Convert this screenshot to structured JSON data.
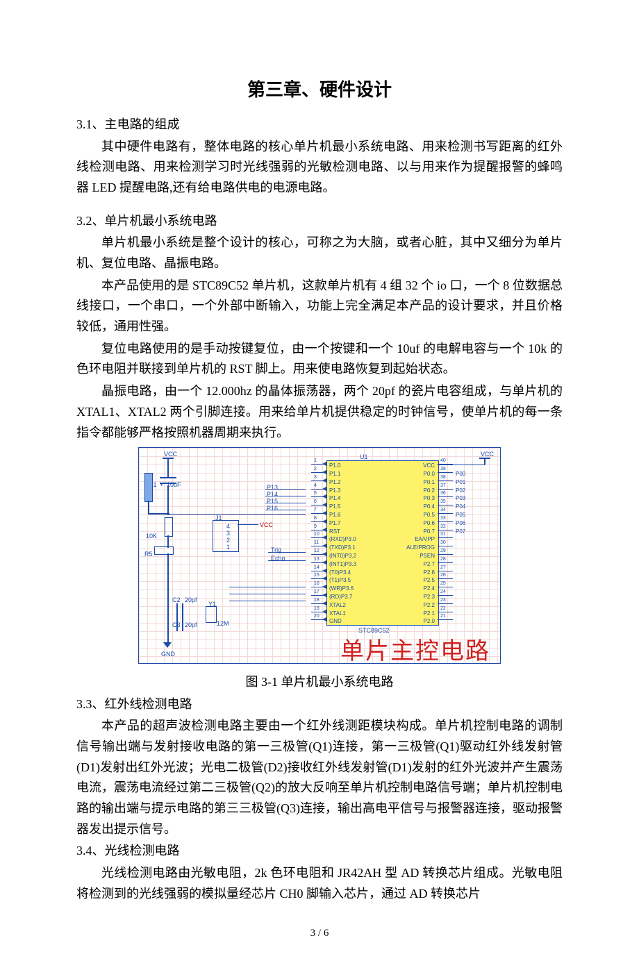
{
  "chapter_title": "第三章、硬件设计",
  "s31": {
    "heading": "3.1、主电路的组成",
    "p1": "其中硬件电路有，整体电路的核心单片机最小系统电路、用来检测书写距离的红外线检测电路、用来检测学习时光线强弱的光敏检测电路、以与用来作为提醒报警的蜂鸣器 LED 提醒电路,还有给电路供电的电源电路。"
  },
  "s32": {
    "heading": "3.2、单片机最小系统电路",
    "p1": "单片机最小系统是整个设计的核心，可称之为大脑，或者心脏，其中又细分为单片机、复位电路、晶振电路。",
    "p2": "本产品使用的是 STC89C52 单片机，这款单片机有 4 组 32 个 io 口，一个 8 位数据总线接口，一个串口，一个外部中断输入，功能上完全满足本产品的设计要求，并且价格较低，通用性强。",
    "p3": "复位电路使用的是手动按键复位，由一个按键和一个 10uf 的电解电容与一个 10k 的色环电阻并联接到单片机的 RST 脚上。用来使电路恢复到起始状态。",
    "p4": "晶振电路，由一个 12.000hz 的晶体振荡器，两个 20pf 的瓷片电容组成，与单片机的 XTAL1、XTAL2 两个引脚连接。用来给单片机提供稳定的时钟信号，使单片机的每一条指令都能够严格按照机器周期来执行。"
  },
  "fig31": {
    "caption": "图 3-1 单片机最小系统电路",
    "title_red": "单片主控电路",
    "chip_name": "STC89C52",
    "chip_ref": "U1",
    "vcc": "VCC",
    "gnd": "GND",
    "c1": "C1",
    "c1_val": "10uF",
    "c1_plus": "+",
    "c2": "C2",
    "c2_val": "20pf",
    "c3": "C3",
    "c3_val": "20pf",
    "y1": "Y1",
    "y1_val": "12M",
    "r5": "R5",
    "r5_val": "10K",
    "j1": "J1",
    "j1_pins": [
      "4",
      "3",
      "2",
      "1"
    ],
    "j1_vcc": "VCC",
    "trig": "Trig",
    "echo": "Echo",
    "bus_p": [
      "P13",
      "P14",
      "P15",
      "P16"
    ],
    "left_pins": [
      {
        "n": "1",
        "name": "P1.0"
      },
      {
        "n": "2",
        "name": "P1.1"
      },
      {
        "n": "3",
        "name": "P1.2"
      },
      {
        "n": "4",
        "name": "P1.3"
      },
      {
        "n": "5",
        "name": "P1.4"
      },
      {
        "n": "6",
        "name": "P1.5"
      },
      {
        "n": "7",
        "name": "P1.6"
      },
      {
        "n": "8",
        "name": "P1.7"
      },
      {
        "n": "9",
        "name": "RST"
      },
      {
        "n": "10",
        "name": "(RXD)P3.0"
      },
      {
        "n": "11",
        "name": "(TXD)P3.1"
      },
      {
        "n": "12",
        "name": "(INT0)P3.2"
      },
      {
        "n": "13",
        "name": "(INT1)P3.3"
      },
      {
        "n": "14",
        "name": "(T0)P3.4"
      },
      {
        "n": "15",
        "name": "(T1)P3.5"
      },
      {
        "n": "16",
        "name": "(WR)P3.6"
      },
      {
        "n": "17",
        "name": "(RD)P3.7"
      },
      {
        "n": "18",
        "name": "XTAL2"
      },
      {
        "n": "19",
        "name": "XTAL1"
      },
      {
        "n": "20",
        "name": "GND"
      }
    ],
    "right_pins": [
      {
        "n": "40",
        "name": "VCC"
      },
      {
        "n": "39",
        "name": "P0.0",
        "net": "P00"
      },
      {
        "n": "38",
        "name": "P0.1",
        "net": "P01"
      },
      {
        "n": "37",
        "name": "P0.2",
        "net": "P02"
      },
      {
        "n": "36",
        "name": "P0.3",
        "net": "P03"
      },
      {
        "n": "35",
        "name": "P0.4",
        "net": "P04"
      },
      {
        "n": "34",
        "name": "P0.5",
        "net": "P05"
      },
      {
        "n": "33",
        "name": "P0.6",
        "net": "P06"
      },
      {
        "n": "32",
        "name": "P0.7",
        "net": "P07"
      },
      {
        "n": "31",
        "name": "EA/VPP"
      },
      {
        "n": "30",
        "name": "ALE/PROG"
      },
      {
        "n": "29",
        "name": "PSEN"
      },
      {
        "n": "28",
        "name": "P2.7"
      },
      {
        "n": "27",
        "name": "P2.6"
      },
      {
        "n": "26",
        "name": "P2.5"
      },
      {
        "n": "25",
        "name": "P2.4"
      },
      {
        "n": "24",
        "name": "P2.3"
      },
      {
        "n": "23",
        "name": "P2.2"
      },
      {
        "n": "22",
        "name": "P2.1"
      },
      {
        "n": "21",
        "name": "P2.0"
      }
    ]
  },
  "s33": {
    "heading": "3.3、红外线检测电路",
    "p1": "本产品的超声波检测电路主要由一个红外线测距模块构成。单片机控制电路的调制信号输出端与发射接收电路的第一三极管(Q1)连接，第一三极管(Q1)驱动红外线发射管(D1)发射出红外光波；光电二极管(D2)接收红外线发射管(D1)发射的红外光波并产生震荡电流，震荡电流经过第二三极管(Q2)的放大反响至单片机控制电路信号端；单片机控制电路的输出端与提示电路的第三三极管(Q3)连接，输出高电平信号与报警器连接，驱动报警器发出提示信号。"
  },
  "s34": {
    "heading": "3.4、光线检测电路",
    "p1": "光线检测电路由光敏电阻，2k 色环电阻和 JR42AH 型 AD 转换芯片组成。光敏电阻将检测到的光线强弱的模拟量经芯片 CH0 脚输入芯片，通过 AD 转换芯片"
  },
  "page_number": "3 / 6"
}
